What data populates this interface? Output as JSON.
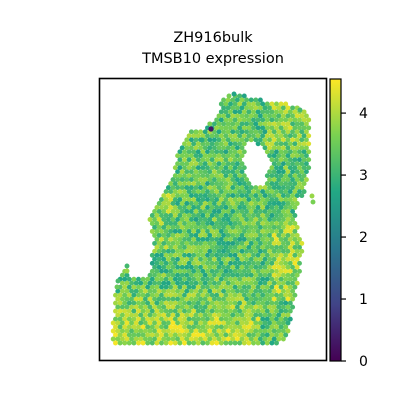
{
  "chart_data": {
    "type": "scatter",
    "title": "ZH916bulk\nTMSB10 expression",
    "title_lines": [
      "ZH916bulk",
      "TMSB10 expression"
    ],
    "xlabel": "",
    "ylabel": "",
    "grid": false,
    "colormap": "viridis",
    "colorbar": {
      "range": [
        0,
        4.55
      ],
      "ticks": [
        0,
        1,
        2,
        3,
        4
      ],
      "tick_labels": [
        "0",
        "1",
        "2",
        "3",
        "4"
      ]
    },
    "expression_summary": {
      "typical_value": 3.3,
      "high_value_region": "lower-left",
      "low_outlier_value": 0.3
    }
  },
  "colors": {
    "viridis_stops": [
      "#440154",
      "#414487",
      "#2a788e",
      "#22a884",
      "#7ad151",
      "#fde725"
    ]
  }
}
